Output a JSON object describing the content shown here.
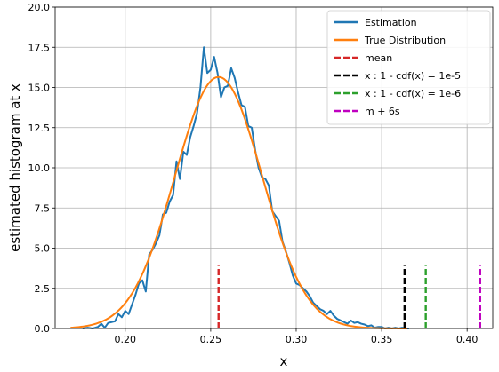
{
  "chart_data": {
    "type": "line",
    "xlabel": "x",
    "ylabel": "estimated histogram at x",
    "xlim": [
      0.159,
      0.415
    ],
    "ylim": [
      0,
      20
    ],
    "x_ticks": [
      "0.20",
      "0.25",
      "0.30",
      "0.35",
      "0.40"
    ],
    "y_ticks": [
      "0.0",
      "2.5",
      "5.0",
      "7.5",
      "10.0",
      "12.5",
      "15.0",
      "17.5",
      "20.0"
    ],
    "grid": true,
    "legend_position": "top-right",
    "series": [
      {
        "name": "Estimation",
        "color": "#1f77b4",
        "points": [
          [
            0.175,
            0.0
          ],
          [
            0.178,
            0.05
          ],
          [
            0.181,
            0.0
          ],
          [
            0.184,
            0.1
          ],
          [
            0.186,
            0.3
          ],
          [
            0.188,
            0.05
          ],
          [
            0.19,
            0.35
          ],
          [
            0.192,
            0.4
          ],
          [
            0.194,
            0.45
          ],
          [
            0.196,
            0.9
          ],
          [
            0.198,
            0.7
          ],
          [
            0.2,
            1.1
          ],
          [
            0.202,
            0.9
          ],
          [
            0.204,
            1.5
          ],
          [
            0.206,
            2.1
          ],
          [
            0.208,
            2.8
          ],
          [
            0.21,
            3.0
          ],
          [
            0.212,
            2.3
          ],
          [
            0.214,
            4.6
          ],
          [
            0.216,
            4.9
          ],
          [
            0.218,
            5.3
          ],
          [
            0.22,
            5.8
          ],
          [
            0.222,
            7.1
          ],
          [
            0.224,
            7.2
          ],
          [
            0.226,
            7.9
          ],
          [
            0.228,
            8.3
          ],
          [
            0.23,
            10.4
          ],
          [
            0.232,
            9.3
          ],
          [
            0.234,
            11.0
          ],
          [
            0.236,
            10.8
          ],
          [
            0.238,
            11.9
          ],
          [
            0.24,
            12.6
          ],
          [
            0.242,
            13.4
          ],
          [
            0.244,
            15.0
          ],
          [
            0.246,
            17.5
          ],
          [
            0.248,
            15.9
          ],
          [
            0.25,
            16.1
          ],
          [
            0.252,
            16.9
          ],
          [
            0.254,
            15.9
          ],
          [
            0.256,
            14.4
          ],
          [
            0.258,
            15.0
          ],
          [
            0.26,
            15.1
          ],
          [
            0.262,
            16.2
          ],
          [
            0.264,
            15.6
          ],
          [
            0.266,
            14.7
          ],
          [
            0.268,
            13.9
          ],
          [
            0.27,
            13.8
          ],
          [
            0.272,
            12.6
          ],
          [
            0.274,
            12.5
          ],
          [
            0.276,
            11.1
          ],
          [
            0.278,
            10.0
          ],
          [
            0.28,
            9.4
          ],
          [
            0.282,
            9.3
          ],
          [
            0.284,
            8.9
          ],
          [
            0.286,
            7.3
          ],
          [
            0.288,
            7.0
          ],
          [
            0.29,
            6.7
          ],
          [
            0.292,
            5.4
          ],
          [
            0.294,
            4.8
          ],
          [
            0.296,
            4.1
          ],
          [
            0.298,
            3.3
          ],
          [
            0.3,
            2.8
          ],
          [
            0.302,
            2.7
          ],
          [
            0.304,
            2.5
          ],
          [
            0.306,
            2.3
          ],
          [
            0.308,
            2.0
          ],
          [
            0.31,
            1.6
          ],
          [
            0.312,
            1.4
          ],
          [
            0.314,
            1.2
          ],
          [
            0.316,
            1.1
          ],
          [
            0.318,
            0.9
          ],
          [
            0.32,
            1.1
          ],
          [
            0.322,
            0.8
          ],
          [
            0.324,
            0.6
          ],
          [
            0.326,
            0.5
          ],
          [
            0.328,
            0.4
          ],
          [
            0.33,
            0.3
          ],
          [
            0.332,
            0.5
          ],
          [
            0.334,
            0.35
          ],
          [
            0.336,
            0.4
          ],
          [
            0.338,
            0.3
          ],
          [
            0.34,
            0.25
          ],
          [
            0.342,
            0.15
          ],
          [
            0.344,
            0.2
          ],
          [
            0.346,
            0.05
          ],
          [
            0.348,
            0.1
          ],
          [
            0.35,
            0.1
          ],
          [
            0.352,
            0.0
          ],
          [
            0.354,
            0.05
          ],
          [
            0.356,
            0.0
          ],
          [
            0.358,
            0.05
          ],
          [
            0.36,
            0.0
          ],
          [
            0.362,
            0.05
          ],
          [
            0.364,
            0.0
          ],
          [
            0.366,
            0.0
          ]
        ]
      },
      {
        "name": "True Distribution",
        "color": "#ff7f0e",
        "mean": 0.2546,
        "std": 0.0255,
        "peak": 15.65,
        "x_range": [
          0.168,
          0.365
        ]
      },
      {
        "name": "mean",
        "color": "#d62728",
        "style": "dashed",
        "x": 0.2546,
        "y_range": [
          0,
          3.9
        ]
      },
      {
        "name": "x : 1 - cdf(x) = 1e-5",
        "color": "#000000",
        "style": "dashed",
        "x": 0.3634,
        "y_range": [
          0,
          3.9
        ]
      },
      {
        "name": "x : 1 - cdf(x) = 1e-6",
        "color": "#2ca02c",
        "style": "dashed",
        "x": 0.3758,
        "y_range": [
          0,
          3.9
        ]
      },
      {
        "name": "m + 6s",
        "color": "#bf00bf",
        "style": "dashed",
        "x": 0.4076,
        "y_range": [
          0,
          3.9
        ]
      }
    ]
  }
}
